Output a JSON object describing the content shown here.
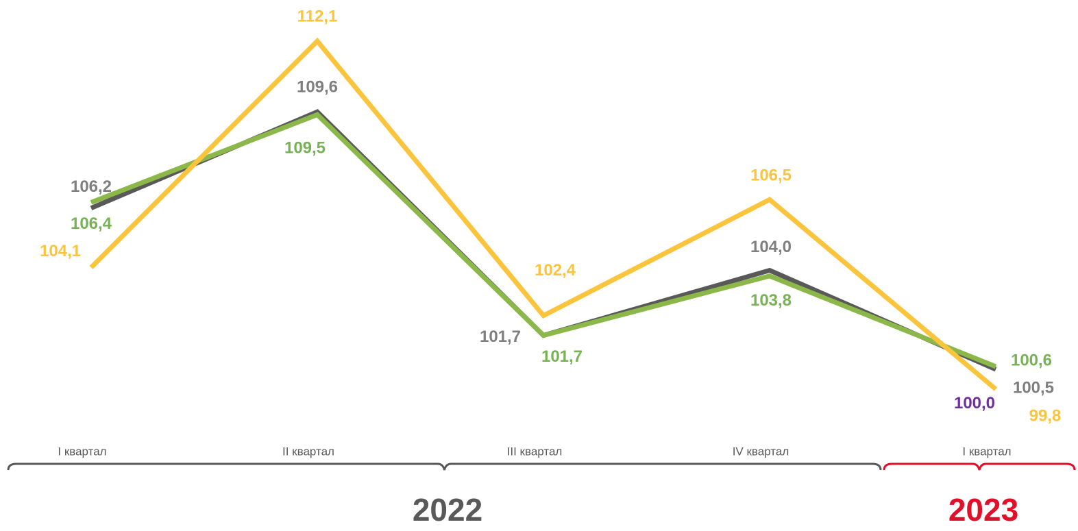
{
  "chart_data": {
    "type": "line",
    "categories": [
      "I квартал",
      "II квартал",
      "III квартал",
      "IV квартал",
      "I квартал"
    ],
    "series": [
      {
        "color": "#595959",
        "label_color": "#7f7f7f",
        "values": [
          106.2,
          109.6,
          101.7,
          104.0,
          100.5
        ],
        "value_labels": [
          "106,2",
          "109,6",
          "101,7",
          "104,0",
          "100,5"
        ]
      },
      {
        "color": "#8cb84a",
        "label_color": "#77b255",
        "values": [
          106.4,
          109.5,
          101.7,
          103.8,
          100.6
        ],
        "value_labels": [
          "106,4",
          "109,5",
          "101,7",
          "103,8",
          "100,6"
        ]
      },
      {
        "color": "#fbc43d",
        "label_color": "#fbc43d",
        "values": [
          104.1,
          112.1,
          102.4,
          106.5,
          99.8
        ],
        "value_labels": [
          "104,1",
          "112,1",
          "102,4",
          "106,5",
          "99,8"
        ]
      },
      {
        "color": "#7030a0",
        "label_color": "#7030a0",
        "values": [
          null,
          null,
          null,
          null,
          100.0
        ],
        "value_labels": [
          null,
          null,
          null,
          null,
          "100,0"
        ]
      }
    ],
    "groups": [
      {
        "label": "2022",
        "color": "#595959",
        "categories": 4
      },
      {
        "label": "2023",
        "color": "#e0102a",
        "categories": 1
      }
    ]
  }
}
